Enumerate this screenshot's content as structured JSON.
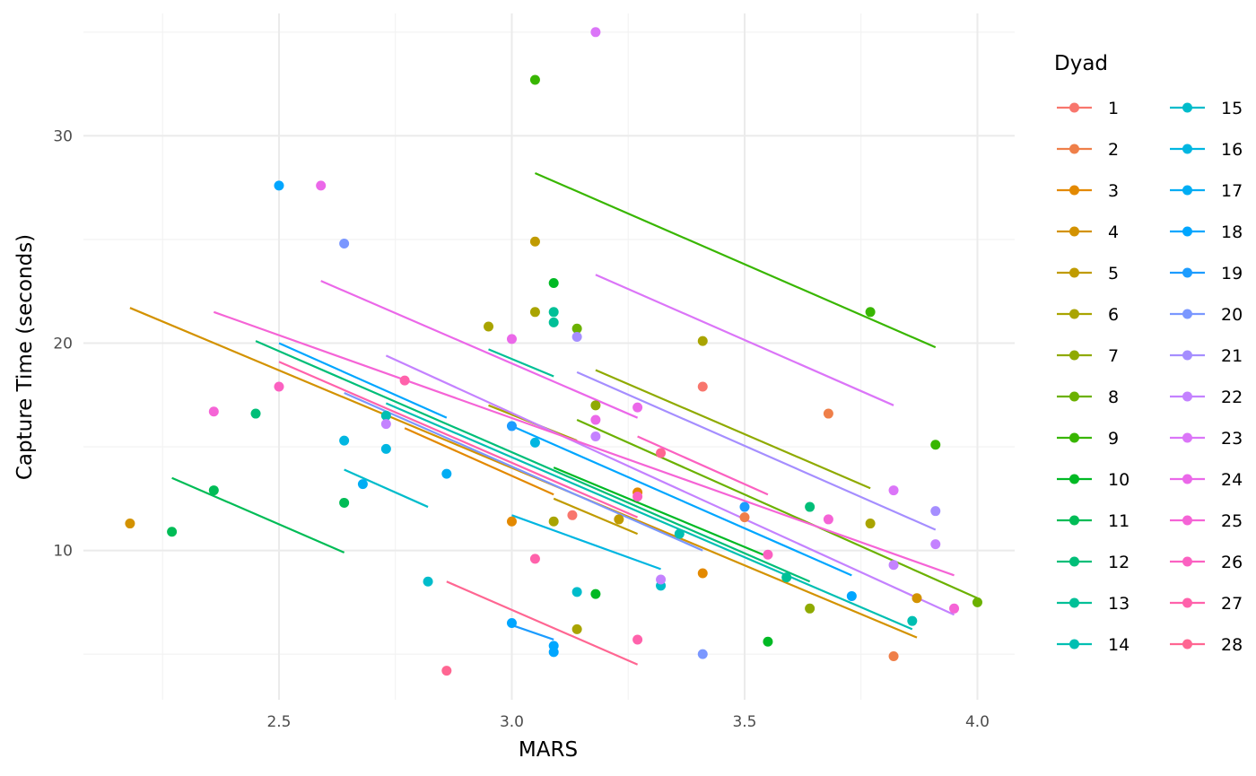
{
  "chart_data": {
    "type": "scatter",
    "xlabel": "MARS",
    "ylabel": "Capture Time (seconds)",
    "xlim": [
      2.08,
      4.08
    ],
    "ylim": [
      2.8,
      35.9
    ],
    "x_ticks": [
      2.5,
      3.0,
      3.5,
      4.0
    ],
    "x_tick_labels": [
      "2.5",
      "3.0",
      "3.5",
      "4.0"
    ],
    "y_ticks": [
      10,
      20,
      30
    ],
    "y_tick_labels": [
      "10",
      "20",
      "30"
    ],
    "grid": true,
    "legend_title": "Dyad",
    "legend_position": "right",
    "series": [
      {
        "name": "1",
        "color": "#F8766D",
        "points": [
          [
            3.41,
            17.9
          ],
          [
            3.13,
            11.7
          ]
        ],
        "fit": [
          [
            3.41,
            17.9
          ],
          [
            3.41,
            17.9
          ]
        ]
      },
      {
        "name": "2",
        "color": "#EF7F49",
        "points": [
          [
            3.68,
            16.6
          ],
          [
            3.5,
            11.6
          ],
          [
            3.82,
            4.9
          ]
        ],
        "fit": [
          [
            3.68,
            16.6
          ],
          [
            3.68,
            16.6
          ]
        ]
      },
      {
        "name": "3",
        "color": "#E38900",
        "points": [
          [
            3.0,
            11.4
          ],
          [
            3.27,
            12.8
          ],
          [
            3.41,
            8.9
          ]
        ],
        "fit": [
          [
            2.77,
            15.9
          ],
          [
            3.09,
            12.7
          ]
        ]
      },
      {
        "name": "4",
        "color": "#D39200",
        "points": [
          [
            2.18,
            11.3
          ],
          [
            3.87,
            7.7
          ]
        ],
        "fit": [
          [
            2.18,
            21.7
          ],
          [
            3.87,
            5.8
          ]
        ]
      },
      {
        "name": "5",
        "color": "#C09B00",
        "points": [
          [
            3.05,
            24.9
          ],
          [
            3.23,
            11.5
          ]
        ],
        "fit": [
          [
            3.09,
            12.5
          ],
          [
            3.27,
            10.8
          ]
        ]
      },
      {
        "name": "6",
        "color": "#A9A400",
        "points": [
          [
            2.95,
            20.8
          ],
          [
            3.05,
            21.5
          ],
          [
            3.41,
            20.1
          ],
          [
            3.14,
            6.2
          ],
          [
            3.77,
            11.3
          ],
          [
            3.09,
            11.4
          ]
        ],
        "fit": [
          [
            2.95,
            17.0
          ],
          [
            3.14,
            15.3
          ]
        ]
      },
      {
        "name": "7",
        "color": "#8FAA00",
        "points": [
          [
            3.18,
            17.0
          ],
          [
            3.64,
            7.2
          ]
        ],
        "fit": [
          [
            3.18,
            18.7
          ],
          [
            3.77,
            13.0
          ]
        ]
      },
      {
        "name": "8",
        "color": "#6BB100",
        "points": [
          [
            3.14,
            20.7
          ],
          [
            4.0,
            7.5
          ]
        ],
        "fit": [
          [
            3.14,
            16.3
          ],
          [
            4.0,
            7.7
          ]
        ]
      },
      {
        "name": "9",
        "color": "#38B600",
        "points": [
          [
            3.05,
            32.7
          ],
          [
            3.77,
            21.5
          ],
          [
            3.91,
            15.1
          ]
        ],
        "fit": [
          [
            3.05,
            28.2
          ],
          [
            3.91,
            19.8
          ]
        ]
      },
      {
        "name": "10",
        "color": "#00B924",
        "points": [
          [
            3.09,
            22.9
          ],
          [
            3.18,
            7.9
          ],
          [
            3.55,
            5.6
          ]
        ],
        "fit": [
          [
            3.09,
            14.0
          ],
          [
            3.55,
            9.7
          ]
        ]
      },
      {
        "name": "11",
        "color": "#00BC56",
        "points": [
          [
            2.27,
            10.9
          ],
          [
            2.36,
            12.9
          ],
          [
            2.64,
            12.3
          ]
        ],
        "fit": [
          [
            2.27,
            13.5
          ],
          [
            2.64,
            9.9
          ]
        ]
      },
      {
        "name": "12",
        "color": "#00BE78",
        "points": [
          [
            2.45,
            16.6
          ],
          [
            3.64,
            12.1
          ]
        ],
        "fit": [
          [
            2.45,
            20.1
          ],
          [
            3.64,
            8.5
          ]
        ]
      },
      {
        "name": "13",
        "color": "#00C097",
        "points": [
          [
            3.09,
            21.5
          ],
          [
            3.09,
            21.0
          ],
          [
            3.59,
            8.7
          ]
        ],
        "fit": [
          [
            2.95,
            19.7
          ],
          [
            3.09,
            18.4
          ]
        ]
      },
      {
        "name": "14",
        "color": "#00BFB2",
        "points": [
          [
            2.73,
            16.5
          ],
          [
            3.36,
            10.8
          ],
          [
            3.86,
            6.6
          ]
        ],
        "fit": [
          [
            2.73,
            17.1
          ],
          [
            3.86,
            6.2
          ]
        ]
      },
      {
        "name": "15",
        "color": "#00BCCB",
        "points": [
          [
            2.82,
            8.5
          ],
          [
            3.14,
            8.0
          ],
          [
            3.32,
            8.3
          ]
        ],
        "fit": [
          [
            2.64,
            13.9
          ],
          [
            2.82,
            12.1
          ]
        ]
      },
      {
        "name": "16",
        "color": "#00B6E1",
        "points": [
          [
            2.64,
            15.3
          ],
          [
            2.73,
            14.9
          ],
          [
            3.05,
            15.2
          ]
        ],
        "fit": [
          [
            3.0,
            11.7
          ],
          [
            3.32,
            9.1
          ]
        ]
      },
      {
        "name": "17",
        "color": "#00ADF4",
        "points": [
          [
            2.68,
            13.2
          ],
          [
            2.86,
            13.7
          ]
        ],
        "fit": [
          [
            2.86,
            13.7
          ],
          [
            2.86,
            13.7
          ]
        ]
      },
      {
        "name": "18",
        "color": "#00A6FF",
        "points": [
          [
            2.5,
            27.6
          ],
          [
            3.0,
            6.5
          ],
          [
            3.09,
            5.4
          ],
          [
            3.09,
            5.1
          ],
          [
            3.73,
            7.8
          ]
        ],
        "fit": [
          [
            2.5,
            20.0
          ],
          [
            2.86,
            16.4
          ],
          [
            3.0,
            16.0
          ],
          [
            3.73,
            8.8
          ]
        ]
      },
      {
        "name": "19",
        "color": "#1C9CFF",
        "points": [
          [
            3.0,
            16.0
          ],
          [
            3.5,
            12.1
          ]
        ],
        "fit": [
          [
            3.0,
            6.4
          ],
          [
            3.09,
            5.7
          ]
        ]
      },
      {
        "name": "20",
        "color": "#7A97FF",
        "points": [
          [
            2.64,
            24.8
          ],
          [
            3.41,
            5.0
          ]
        ],
        "fit": [
          [
            2.64,
            17.6
          ],
          [
            3.41,
            10.0
          ]
        ]
      },
      {
        "name": "21",
        "color": "#A58EFF",
        "points": [
          [
            3.14,
            20.3
          ],
          [
            3.91,
            11.9
          ]
        ],
        "fit": [
          [
            3.14,
            18.6
          ],
          [
            3.91,
            11.0
          ]
        ]
      },
      {
        "name": "22",
        "color": "#C482FF",
        "points": [
          [
            2.73,
            16.1
          ],
          [
            3.18,
            15.5
          ],
          [
            3.32,
            8.6
          ],
          [
            3.82,
            9.3
          ],
          [
            3.91,
            10.3
          ]
        ],
        "fit": [
          [
            2.73,
            19.4
          ],
          [
            3.95,
            6.9
          ]
        ]
      },
      {
        "name": "23",
        "color": "#DB75F8",
        "points": [
          [
            3.18,
            35.0
          ],
          [
            3.82,
            12.9
          ]
        ],
        "fit": [
          [
            3.18,
            23.3
          ],
          [
            3.82,
            17.0
          ]
        ]
      },
      {
        "name": "24",
        "color": "#EB68E9",
        "points": [
          [
            2.59,
            27.6
          ],
          [
            3.0,
            20.2
          ],
          [
            3.18,
            16.3
          ],
          [
            3.27,
            16.9
          ]
        ],
        "fit": [
          [
            2.59,
            23.0
          ],
          [
            3.27,
            16.4
          ]
        ]
      },
      {
        "name": "25",
        "color": "#F564D6",
        "points": [
          [
            2.36,
            16.7
          ],
          [
            3.68,
            11.5
          ],
          [
            3.95,
            7.2
          ]
        ],
        "fit": [
          [
            2.36,
            21.5
          ],
          [
            3.95,
            8.8
          ]
        ]
      },
      {
        "name": "26",
        "color": "#FB61C1",
        "points": [
          [
            2.5,
            17.9
          ],
          [
            3.27,
            12.6
          ],
          [
            3.55,
            9.8
          ]
        ],
        "fit": [
          [
            3.27,
            15.5
          ],
          [
            3.55,
            12.7
          ]
        ]
      },
      {
        "name": "27",
        "color": "#FF62AB",
        "points": [
          [
            2.77,
            18.2
          ],
          [
            3.05,
            9.6
          ],
          [
            3.27,
            5.7
          ]
        ],
        "fit": [
          [
            2.5,
            19.1
          ],
          [
            3.27,
            11.6
          ]
        ]
      },
      {
        "name": "28",
        "color": "#FF6692",
        "points": [
          [
            2.86,
            4.2
          ],
          [
            3.32,
            14.7
          ]
        ],
        "fit": [
          [
            2.86,
            8.5
          ],
          [
            3.27,
            4.5
          ]
        ]
      }
    ]
  }
}
